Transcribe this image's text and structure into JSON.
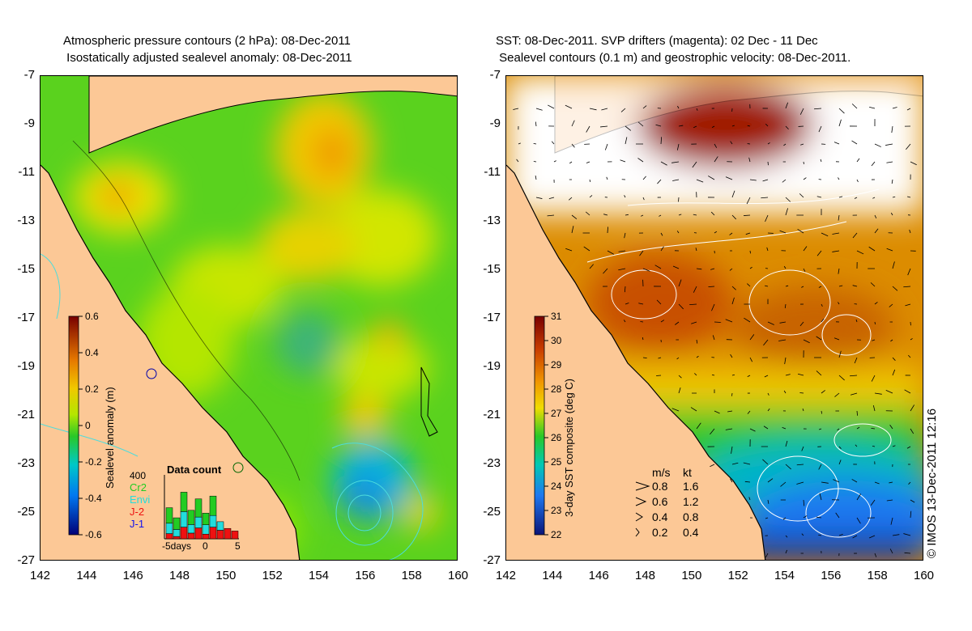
{
  "left_panel": {
    "title_line1": "Atmospheric pressure contours (2 hPa): 08-Dec-2011",
    "title_line2": "Isostatically adjusted sealevel anomaly: 08-Dec-2011",
    "colorbar": {
      "label": "Sealevel anomaly (m)",
      "ticks": [
        "0.6",
        "0.4",
        "0.2",
        "0",
        "-0.2",
        "-0.4",
        "-0.6"
      ],
      "range": [
        -0.6,
        0.6
      ]
    },
    "data_count": {
      "title": "Data count",
      "y_tick": "400",
      "x_ticks": [
        "-5days",
        "0",
        "5"
      ],
      "legend": [
        {
          "label": "Cr2",
          "color": "#22cc22"
        },
        {
          "label": "Envi",
          "color": "#22dddd"
        },
        {
          "label": "J-2",
          "color": "#ee1111"
        },
        {
          "label": "J-1",
          "color": "#1111ee"
        }
      ]
    }
  },
  "right_panel": {
    "title_line1": "SST: 08-Dec-2011. SVP drifters (magenta): 02 Dec - 11 Dec",
    "title_line2": "Sealevel contours (0.1 m) and geostrophic velocity: 08-Dec-2011.",
    "colorbar": {
      "label": "3-day SST composite (deg C)",
      "ticks": [
        "31",
        "30",
        "29",
        "28",
        "27",
        "26",
        "25",
        "24",
        "23",
        "22"
      ],
      "range": [
        22,
        31
      ]
    },
    "velocity_legend": {
      "header_ms": "m/s",
      "header_kt": "kt",
      "rows": [
        {
          "ms": "0.8",
          "kt": "1.6"
        },
        {
          "ms": "0.6",
          "kt": "1.2"
        },
        {
          "ms": "0.4",
          "kt": "0.8"
        },
        {
          "ms": "0.2",
          "kt": "0.4"
        }
      ]
    }
  },
  "axes": {
    "lon_ticks": [
      "142",
      "144",
      "146",
      "148",
      "150",
      "152",
      "154",
      "156",
      "158",
      "160"
    ],
    "lat_ticks": [
      "-7",
      "-9",
      "-11",
      "-13",
      "-15",
      "-17",
      "-19",
      "-21",
      "-23",
      "-25",
      "-27"
    ],
    "lon_range": [
      142,
      160
    ],
    "lat_range": [
      -27,
      -7
    ]
  },
  "copyright": "© IMOS 13-Dec-2011 12:16",
  "colors": {
    "land": "#fcc896",
    "ocean_contour": "#4ddcdc"
  }
}
